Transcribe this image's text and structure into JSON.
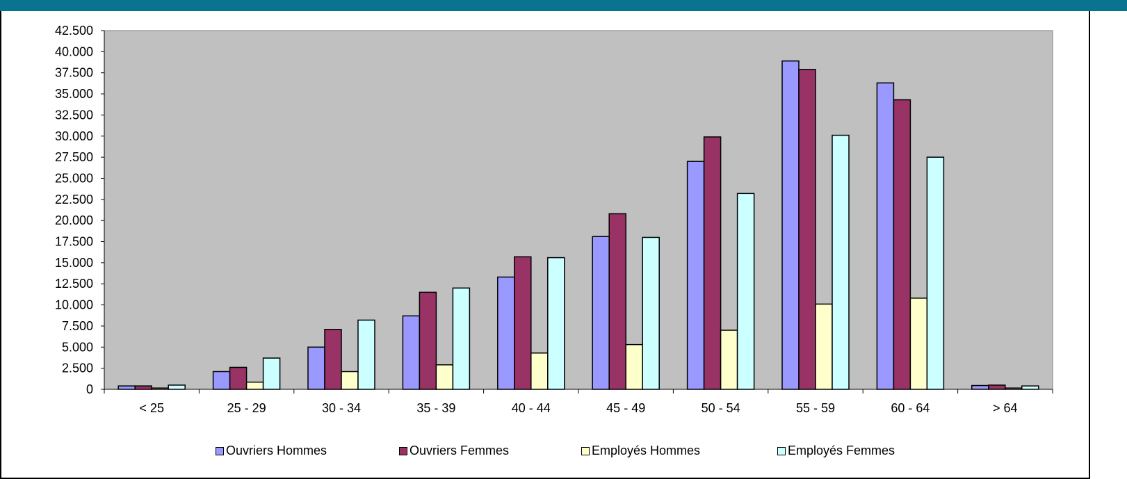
{
  "chart_data": {
    "type": "bar",
    "title": "",
    "xlabel": "",
    "ylabel": "",
    "ylim": [
      0,
      42500
    ],
    "ytick_step": 2500,
    "ytick_labels": [
      "0",
      "2.500",
      "5.000",
      "7.500",
      "10.000",
      "12.500",
      "15.000",
      "17.500",
      "20.000",
      "22.500",
      "25.000",
      "27.500",
      "30.000",
      "32.500",
      "35.000",
      "37.500",
      "40.000",
      "42.500"
    ],
    "categories": [
      "< 25",
      "25 - 29",
      "30 - 34",
      "35 - 39",
      "40 - 44",
      "45 - 49",
      "50 - 54",
      "55 - 59",
      "60 - 64",
      "> 64"
    ],
    "series": [
      {
        "name": "Ouvriers Hommes",
        "color": "#9999ff",
        "values": [
          400,
          2100,
          5000,
          8700,
          13300,
          18100,
          27000,
          38900,
          36300,
          450
        ]
      },
      {
        "name": "Ouvriers Femmes",
        "color": "#993366",
        "values": [
          400,
          2600,
          7100,
          11500,
          15700,
          20800,
          29900,
          37900,
          34300,
          500
        ]
      },
      {
        "name": "Employés Hommes",
        "color": "#ffffcc",
        "values": [
          150,
          850,
          2100,
          2900,
          4300,
          5300,
          7000,
          10100,
          10800,
          150
        ]
      },
      {
        "name": "Employés Femmes",
        "color": "#ccffff",
        "values": [
          500,
          3700,
          8200,
          12000,
          15600,
          18000,
          23200,
          30100,
          27500,
          400
        ]
      }
    ],
    "plot_background": "#c0c0c0",
    "grid": false,
    "legend_position": "bottom"
  },
  "colors": {
    "topbar": "#0a7390"
  }
}
